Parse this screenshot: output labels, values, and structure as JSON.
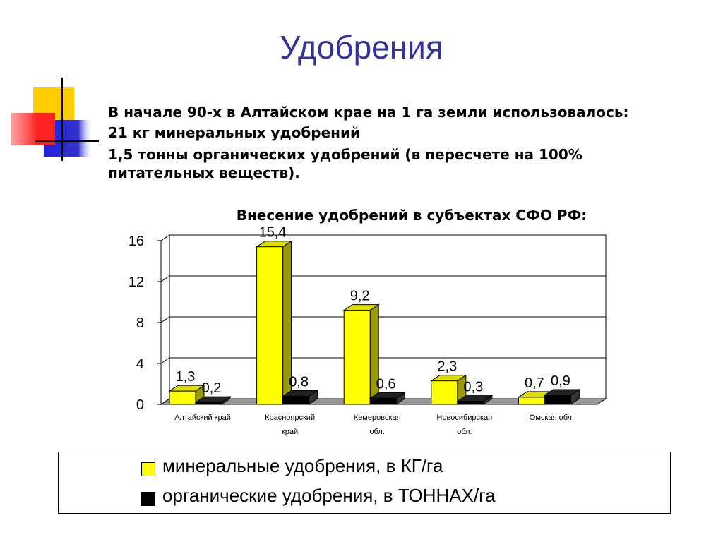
{
  "title": "Удобрения",
  "bullets": [
    "В начале 90-х в Алтайском крае на 1 га земли использовалось:",
    "21 кг минеральных удобрений",
    "1,5 тонны органических удобрений (в пересчете на 100%\nпитательных веществ)."
  ],
  "chart_data": {
    "type": "bar",
    "title": "Внесение удобрений в субъектах СФО РФ:",
    "categories": [
      "Алтайский край",
      "Красноярский\nкрай",
      "Кемеровская\nобл.",
      "Новосибирская\nобл.",
      "Омская обл."
    ],
    "series": [
      {
        "name": "минеральные удобрения, в КГ/га",
        "color": "#ffff00",
        "values": [
          1.3,
          15.4,
          9.2,
          2.3,
          0.7
        ],
        "value_labels": [
          "1,3",
          "15,4",
          "9,2",
          "2,3",
          "0,7"
        ]
      },
      {
        "name": "органические удобрения, в ТОННАХ/га",
        "color": "#000000",
        "values": [
          0.2,
          0.8,
          0.6,
          0.3,
          0.9
        ],
        "value_labels": [
          "0,2",
          "0,8",
          "0,6",
          "0,3",
          "0,9"
        ]
      }
    ],
    "ylim": [
      0,
      16
    ],
    "yticks": [
      0,
      4,
      8,
      12,
      16
    ],
    "grid": true
  }
}
